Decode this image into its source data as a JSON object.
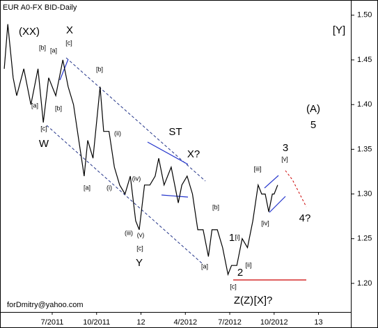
{
  "chart_data": {
    "type": "line",
    "title": "EUR A0-FX BID-Daily",
    "footer": "forDmitry@yahoo.com",
    "x": [
      2011.23,
      2011.25,
      2011.28,
      2011.3,
      2011.34,
      2011.38,
      2011.42,
      2011.45,
      2011.48,
      2011.52,
      2011.56,
      2011.59,
      2011.62,
      2011.65,
      2011.68,
      2011.7,
      2011.73,
      2011.75,
      2011.77,
      2011.79,
      2011.82,
      2011.85,
      2011.88,
      2011.91,
      2011.94,
      2011.97,
      2011.99,
      2012.02,
      2012.05,
      2012.08,
      2012.1,
      2012.13,
      2012.17,
      2012.21,
      2012.23,
      2012.26,
      2012.29,
      2012.32,
      2012.35,
      2012.38,
      2012.4,
      2012.43,
      2012.46,
      2012.49,
      2012.51,
      2012.54,
      2012.57,
      2012.6,
      2012.63,
      2012.66,
      2012.68,
      2012.7,
      2012.72,
      2012.74,
      2012.75,
      2012.77
    ],
    "series": [
      {
        "name": "EUR",
        "color": "#000000",
        "values": [
          1.44,
          1.49,
          1.43,
          1.41,
          1.44,
          1.4,
          1.44,
          1.38,
          1.43,
          1.41,
          1.45,
          1.42,
          1.4,
          1.36,
          1.32,
          1.36,
          1.34,
          1.38,
          1.42,
          1.37,
          1.37,
          1.33,
          1.31,
          1.3,
          1.32,
          1.27,
          1.26,
          1.31,
          1.31,
          1.32,
          1.34,
          1.31,
          1.33,
          1.29,
          1.31,
          1.32,
          1.3,
          1.26,
          1.26,
          1.23,
          1.26,
          1.26,
          1.24,
          1.21,
          1.22,
          1.22,
          1.25,
          1.24,
          1.27,
          1.31,
          1.3,
          1.3,
          1.28,
          1.3,
          1.3,
          1.31
        ]
      }
    ],
    "xlim": [
      2011.206,
      2013.186
    ],
    "ylim": [
      1.168,
      1.517
    ],
    "xticks": [
      {
        "value": 2011.5,
        "label": "7/2011"
      },
      {
        "value": 2011.75,
        "label": "10/2011"
      },
      {
        "value": 2012.0,
        "label": "12"
      },
      {
        "value": 2012.25,
        "label": "4/2012"
      },
      {
        "value": 2012.5,
        "label": "7/2012"
      },
      {
        "value": 2012.75,
        "label": "10/2012"
      },
      {
        "value": 2013.0,
        "label": "13"
      }
    ],
    "yticks": [
      {
        "value": 1.2,
        "label": "1.20"
      },
      {
        "value": 1.25,
        "label": "1.25"
      },
      {
        "value": 1.3,
        "label": "1.30"
      },
      {
        "value": 1.35,
        "label": "1.35"
      },
      {
        "value": 1.4,
        "label": "1.40"
      },
      {
        "value": 1.45,
        "label": "1.45"
      },
      {
        "value": 1.5,
        "label": "1.50"
      }
    ],
    "annotations": [
      "(XX)",
      "X",
      "[Y]",
      "(A)",
      "5",
      "3",
      "ST",
      "X?",
      "W",
      "Y",
      "Z(Z)",
      "[X]?",
      "1",
      "2",
      "4?",
      "[a]",
      "[b]",
      "[a]",
      "[c]",
      "[b]",
      "[b]",
      "[c]",
      "[a]",
      "(i)",
      "(ii)",
      "(iii)",
      "(iv)",
      "(v)",
      "[c]",
      "[b]",
      "[a]",
      "[i]",
      "[ii]",
      "[iii]",
      "[iv]",
      "[v]",
      "[c]"
    ]
  }
}
